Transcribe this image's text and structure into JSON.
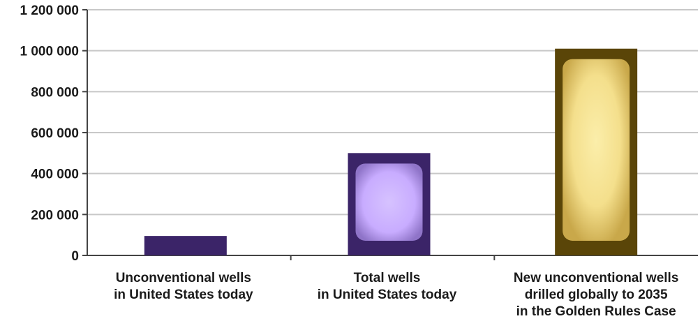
{
  "chart_data": {
    "type": "bar",
    "title": "",
    "xlabel": "",
    "ylabel": "",
    "ylim": [
      0,
      1200000
    ],
    "yticks": [
      {
        "value": 0,
        "label": "0"
      },
      {
        "value": 200000,
        "label": "200 000"
      },
      {
        "value": 400000,
        "label": "400 000"
      },
      {
        "value": 600000,
        "label": "600 000"
      },
      {
        "value": 800000,
        "label": "800 000"
      },
      {
        "value": 1000000,
        "label": "1 000 000"
      },
      {
        "value": 1200000,
        "label": "1 200 000"
      }
    ],
    "grid": true,
    "categories": [
      [
        "Unconventional wells",
        "in United States today"
      ],
      [
        "Total wells",
        "in United States today"
      ],
      [
        "New unconventional wells",
        "drilled globally to 2035",
        "in the Golden Rules Case"
      ]
    ],
    "values": [
      95000,
      500000,
      1010000
    ],
    "colors": {
      "bar_1_fill": "#3b2468",
      "bar_2_frame": "#3b2468",
      "bar_2_inner": "#d2b9ff",
      "bar_3_frame": "#5a4508",
      "bar_3_inner": "#f6e49a",
      "grid": "#c8c8c8",
      "axis": "#444444"
    }
  }
}
